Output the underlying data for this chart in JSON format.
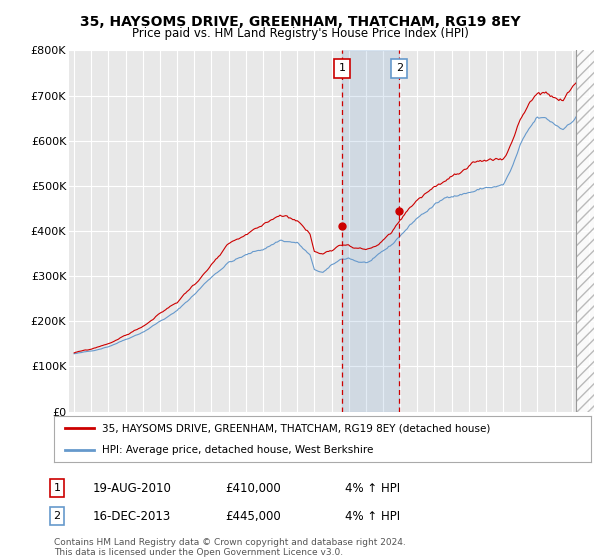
{
  "title": "35, HAYSOMS DRIVE, GREENHAM, THATCHAM, RG19 8EY",
  "subtitle": "Price paid vs. HM Land Registry's House Price Index (HPI)",
  "ylabel_vals": [
    "£0",
    "£100K",
    "£200K",
    "£300K",
    "£400K",
    "£500K",
    "£600K",
    "£700K",
    "£800K"
  ],
  "ylim": [
    0,
    800000
  ],
  "yticks": [
    0,
    100000,
    200000,
    300000,
    400000,
    500000,
    600000,
    700000,
    800000
  ],
  "sale1_date": 2010.63,
  "sale1_price": 410000,
  "sale2_date": 2013.96,
  "sale2_price": 445000,
  "legend_line1": "35, HAYSOMS DRIVE, GREENHAM, THATCHAM, RG19 8EY (detached house)",
  "legend_line2": "HPI: Average price, detached house, West Berkshire",
  "table_row1": [
    "1",
    "19-AUG-2010",
    "£410,000",
    "4% ↑ HPI"
  ],
  "table_row2": [
    "2",
    "16-DEC-2013",
    "£445,000",
    "4% ↑ HPI"
  ],
  "footer": "Contains HM Land Registry data © Crown copyright and database right 2024.\nThis data is licensed under the Open Government Licence v3.0.",
  "house_color": "#cc0000",
  "hpi_color": "#6699cc",
  "background_color": "#ffffff",
  "plot_bg": "#e8e8e8",
  "xlim_start": 1994.7,
  "xlim_end": 2025.3,
  "data_end": 2024.25,
  "hatch_start": 2024.25
}
